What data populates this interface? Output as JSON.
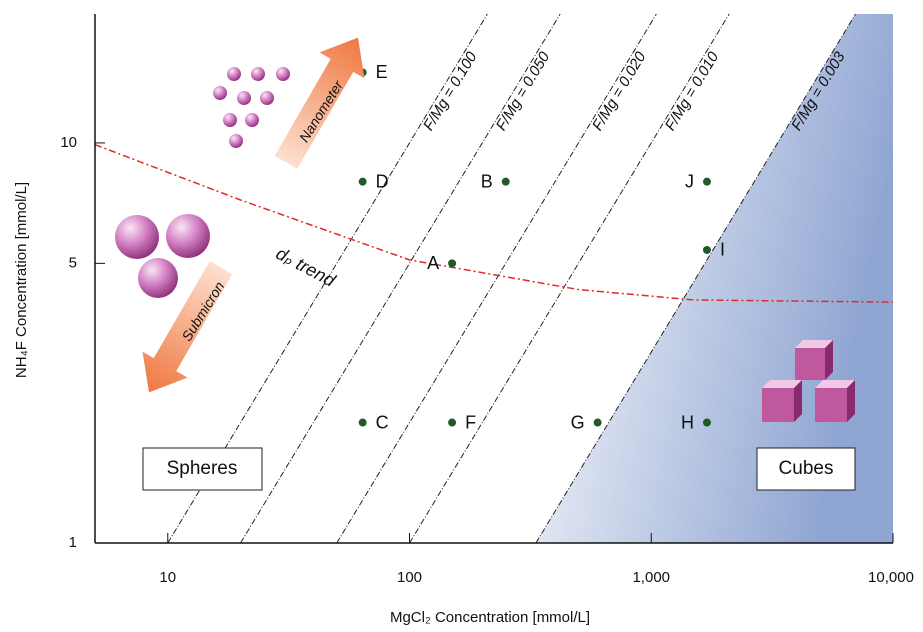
{
  "chart_data": {
    "type": "scatter",
    "x_label": "MgCl₂ Concentration [mmol/L]",
    "y_label": "NH₄F Concentration [mmol/L]",
    "log_x": true,
    "log_y": true,
    "xlim": [
      5,
      10000
    ],
    "ylim": [
      1,
      21
    ],
    "xticks": [
      10,
      100,
      {
        "value": 1000,
        "label": "1,000"
      },
      {
        "value": 10000,
        "label": "10,000"
      }
    ],
    "yticks": [
      1,
      5,
      10
    ],
    "points": {
      "labels": [
        "E",
        "D",
        "B",
        "J",
        "A",
        "I",
        "C",
        "F",
        "G",
        "H"
      ],
      "x": [
        64,
        64,
        250,
        1700,
        150,
        1700,
        64,
        150,
        600,
        1700
      ],
      "y": [
        15,
        8,
        8,
        8,
        5,
        5.4,
        2,
        2,
        2,
        2
      ],
      "color": "#1f5a2a"
    },
    "ratio_lines": {
      "values": [
        0.1,
        0.05,
        0.02,
        0.01,
        0.003
      ],
      "labels": [
        "F/Mg = 0.100",
        "F/Mg = 0.050",
        "F/Mg = 0.020",
        "F/Mg = 0.010",
        "F/Mg = 0.003"
      ],
      "color": "#222222",
      "shaded_color": "#8fa5d2"
    },
    "trend": {
      "label": "dₚ trend",
      "x": [
        5,
        20,
        100,
        500,
        1500,
        10000
      ],
      "y": [
        9.9,
        7.2,
        5.1,
        4.3,
        4.05,
        4.0
      ],
      "color": "#e02a2a"
    },
    "annotations": {
      "spheres": "Spheres",
      "cubes": "Cubes",
      "nanometer": "Nanometer",
      "submicron": "Submicron"
    }
  }
}
